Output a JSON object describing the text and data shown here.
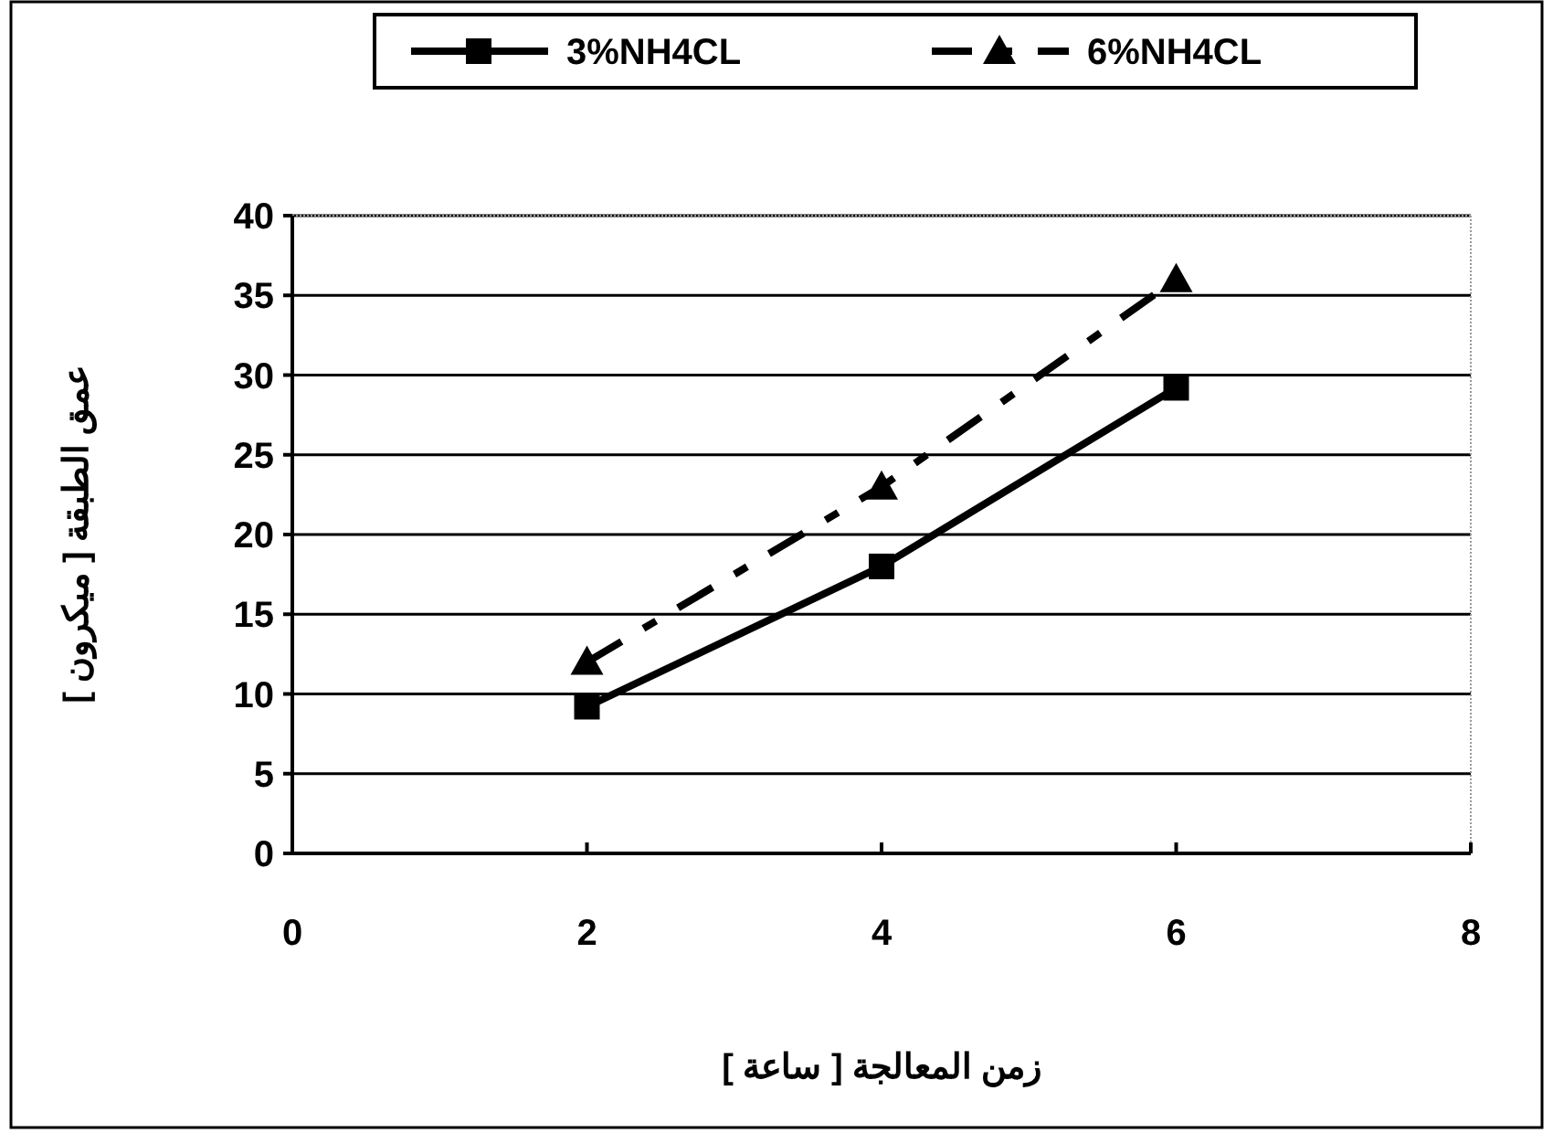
{
  "chart_data": {
    "type": "line",
    "xlabel": "زمن المعالجة [ ساعة ]",
    "ylabel": "عمق الطبقة [ ميكرون ]",
    "series": [
      {
        "name": "3%NH4CL",
        "color": "#000000",
        "x": [
          2,
          4,
          6
        ],
        "values": [
          9.2,
          18,
          29.2
        ],
        "marker": "square",
        "line_style": "solid"
      },
      {
        "name": "6%NH4CL",
        "color": "#000000",
        "x": [
          2,
          4,
          6
        ],
        "values": [
          12,
          23,
          36
        ],
        "marker": "triangle",
        "line_style": "dashed"
      }
    ],
    "xlim": [
      0,
      8
    ],
    "xticks": [
      0,
      2,
      4,
      6,
      8
    ],
    "ylim": [
      0,
      40
    ],
    "yticks": [
      0,
      5,
      10,
      15,
      20,
      25,
      30,
      35,
      40
    ],
    "grid": "y",
    "legend": "top"
  }
}
